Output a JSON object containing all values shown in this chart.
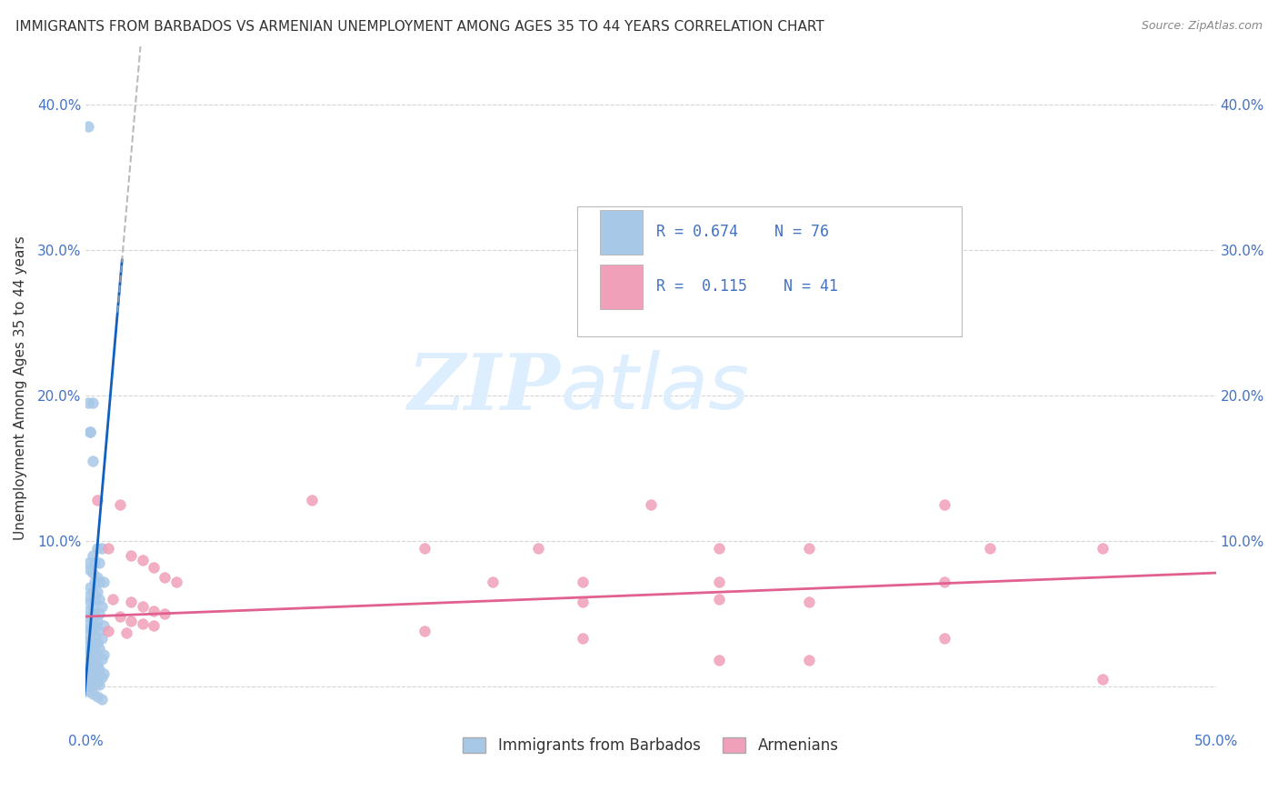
{
  "title": "IMMIGRANTS FROM BARBADOS VS ARMENIAN UNEMPLOYMENT AMONG AGES 35 TO 44 YEARS CORRELATION CHART",
  "source": "Source: ZipAtlas.com",
  "ylabel": "Unemployment Among Ages 35 to 44 years",
  "xlim": [
    0.0,
    0.5
  ],
  "ylim": [
    0.0,
    0.42
  ],
  "x_ticks": [
    0.0,
    0.1,
    0.2,
    0.3,
    0.4,
    0.5
  ],
  "y_ticks": [
    0.0,
    0.1,
    0.2,
    0.3,
    0.4
  ],
  "x_tick_labels": [
    "0.0%",
    "",
    "",
    "",
    "",
    "50.0%"
  ],
  "y_tick_labels": [
    "",
    "10.0%",
    "20.0%",
    "30.0%",
    "40.0%"
  ],
  "legend_labels": [
    "Immigrants from Barbados",
    "Armenians"
  ],
  "R_blue": 0.674,
  "N_blue": 76,
  "R_pink": 0.115,
  "N_pink": 41,
  "blue_color": "#a8c8e8",
  "pink_color": "#f0a0b8",
  "blue_line_color": "#1060c0",
  "pink_line_color": "#e06090",
  "blue_scatter": [
    [
      0.001,
      0.385
    ],
    [
      0.003,
      0.195
    ],
    [
      0.002,
      0.175
    ],
    [
      0.001,
      0.195
    ],
    [
      0.002,
      0.175
    ],
    [
      0.003,
      0.155
    ],
    [
      0.005,
      0.095
    ],
    [
      0.007,
      0.095
    ],
    [
      0.003,
      0.09
    ],
    [
      0.001,
      0.085
    ],
    [
      0.004,
      0.085
    ],
    [
      0.006,
      0.085
    ],
    [
      0.002,
      0.08
    ],
    [
      0.003,
      0.078
    ],
    [
      0.005,
      0.075
    ],
    [
      0.004,
      0.072
    ],
    [
      0.006,
      0.072
    ],
    [
      0.008,
      0.072
    ],
    [
      0.002,
      0.068
    ],
    [
      0.003,
      0.065
    ],
    [
      0.005,
      0.065
    ],
    [
      0.001,
      0.062
    ],
    [
      0.004,
      0.06
    ],
    [
      0.006,
      0.06
    ],
    [
      0.002,
      0.058
    ],
    [
      0.003,
      0.055
    ],
    [
      0.007,
      0.055
    ],
    [
      0.001,
      0.052
    ],
    [
      0.004,
      0.05
    ],
    [
      0.006,
      0.05
    ],
    [
      0.002,
      0.048
    ],
    [
      0.003,
      0.046
    ],
    [
      0.005,
      0.045
    ],
    [
      0.001,
      0.043
    ],
    [
      0.004,
      0.042
    ],
    [
      0.008,
      0.042
    ],
    [
      0.002,
      0.04
    ],
    [
      0.003,
      0.038
    ],
    [
      0.006,
      0.038
    ],
    [
      0.001,
      0.036
    ],
    [
      0.004,
      0.035
    ],
    [
      0.007,
      0.033
    ],
    [
      0.002,
      0.032
    ],
    [
      0.003,
      0.03
    ],
    [
      0.005,
      0.03
    ],
    [
      0.001,
      0.028
    ],
    [
      0.004,
      0.027
    ],
    [
      0.006,
      0.026
    ],
    [
      0.002,
      0.025
    ],
    [
      0.003,
      0.023
    ],
    [
      0.008,
      0.022
    ],
    [
      0.001,
      0.021
    ],
    [
      0.004,
      0.02
    ],
    [
      0.007,
      0.019
    ],
    [
      0.002,
      0.018
    ],
    [
      0.003,
      0.016
    ],
    [
      0.005,
      0.015
    ],
    [
      0.001,
      0.014
    ],
    [
      0.004,
      0.013
    ],
    [
      0.006,
      0.012
    ],
    [
      0.002,
      0.011
    ],
    [
      0.003,
      0.009
    ],
    [
      0.008,
      0.009
    ],
    [
      0.001,
      0.008
    ],
    [
      0.004,
      0.007
    ],
    [
      0.007,
      0.006
    ],
    [
      0.002,
      0.005
    ],
    [
      0.003,
      0.004
    ],
    [
      0.005,
      0.003
    ],
    [
      0.001,
      0.002
    ],
    [
      0.004,
      0.001
    ],
    [
      0.006,
      0.001
    ],
    [
      0.002,
      0.0
    ],
    [
      0.001,
      -0.003
    ],
    [
      0.003,
      -0.005
    ],
    [
      0.005,
      -0.007
    ],
    [
      0.007,
      -0.009
    ]
  ],
  "pink_scatter": [
    [
      0.005,
      0.128
    ],
    [
      0.01,
      0.095
    ],
    [
      0.015,
      0.125
    ],
    [
      0.02,
      0.09
    ],
    [
      0.025,
      0.087
    ],
    [
      0.03,
      0.082
    ],
    [
      0.035,
      0.075
    ],
    [
      0.04,
      0.072
    ],
    [
      0.012,
      0.06
    ],
    [
      0.02,
      0.058
    ],
    [
      0.025,
      0.055
    ],
    [
      0.03,
      0.052
    ],
    [
      0.035,
      0.05
    ],
    [
      0.015,
      0.048
    ],
    [
      0.02,
      0.045
    ],
    [
      0.025,
      0.043
    ],
    [
      0.03,
      0.042
    ],
    [
      0.01,
      0.038
    ],
    [
      0.018,
      0.037
    ],
    [
      0.1,
      0.128
    ],
    [
      0.15,
      0.095
    ],
    [
      0.2,
      0.095
    ],
    [
      0.25,
      0.125
    ],
    [
      0.18,
      0.072
    ],
    [
      0.22,
      0.072
    ],
    [
      0.28,
      0.095
    ],
    [
      0.32,
      0.095
    ],
    [
      0.38,
      0.125
    ],
    [
      0.4,
      0.095
    ],
    [
      0.45,
      0.095
    ],
    [
      0.28,
      0.072
    ],
    [
      0.32,
      0.058
    ],
    [
      0.38,
      0.072
    ],
    [
      0.22,
      0.058
    ],
    [
      0.28,
      0.06
    ],
    [
      0.15,
      0.038
    ],
    [
      0.22,
      0.033
    ],
    [
      0.38,
      0.033
    ],
    [
      0.28,
      0.018
    ],
    [
      0.32,
      0.018
    ],
    [
      0.45,
      0.005
    ]
  ],
  "background_color": "#ffffff",
  "watermark_color": "#ddeeff",
  "grid_color": "#cccccc"
}
